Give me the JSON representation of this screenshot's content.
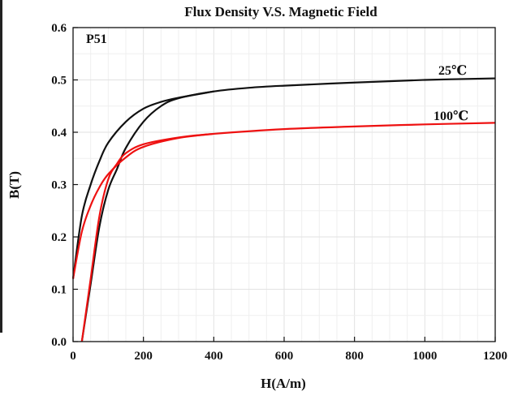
{
  "chart_data": {
    "type": "line",
    "title": "Flux Density V.S. Magnetic Field",
    "sample_label": "P51",
    "xlabel": "H(A/m)",
    "ylabel": "B(T)",
    "xlim": [
      0,
      1200
    ],
    "ylim": [
      0.0,
      0.6
    ],
    "x_ticks": [
      "0",
      "200",
      "400",
      "600",
      "800",
      "1000",
      "1200"
    ],
    "y_ticks": [
      "0.0",
      "0.1",
      "0.2",
      "0.3",
      "0.4",
      "0.5",
      "0.6"
    ],
    "grid": true,
    "series": [
      {
        "name": "25℃",
        "color": "#111111",
        "lower_branch": [
          [
            25,
            0.0
          ],
          [
            50,
            0.11
          ],
          [
            75,
            0.22
          ],
          [
            100,
            0.29
          ],
          [
            125,
            0.33
          ],
          [
            150,
            0.37
          ],
          [
            200,
            0.42
          ],
          [
            250,
            0.45
          ],
          [
            300,
            0.465
          ],
          [
            400,
            0.478
          ],
          [
            500,
            0.485
          ],
          [
            600,
            0.489
          ],
          [
            800,
            0.495
          ],
          [
            1000,
            0.5
          ],
          [
            1200,
            0.503
          ]
        ],
        "upper_branch": [
          [
            0,
            0.12
          ],
          [
            25,
            0.24
          ],
          [
            50,
            0.3
          ],
          [
            75,
            0.345
          ],
          [
            100,
            0.38
          ],
          [
            150,
            0.42
          ],
          [
            200,
            0.445
          ],
          [
            250,
            0.458
          ],
          [
            300,
            0.466
          ],
          [
            400,
            0.478
          ]
        ]
      },
      {
        "name": "100℃",
        "color": "#ee1111",
        "lower_branch": [
          [
            25,
            0.0
          ],
          [
            50,
            0.12
          ],
          [
            75,
            0.24
          ],
          [
            100,
            0.31
          ],
          [
            125,
            0.34
          ],
          [
            150,
            0.36
          ],
          [
            200,
            0.377
          ],
          [
            300,
            0.39
          ],
          [
            400,
            0.397
          ],
          [
            600,
            0.406
          ],
          [
            800,
            0.411
          ],
          [
            1000,
            0.415
          ],
          [
            1200,
            0.418
          ]
        ],
        "upper_branch": [
          [
            0,
            0.12
          ],
          [
            25,
            0.21
          ],
          [
            50,
            0.26
          ],
          [
            75,
            0.295
          ],
          [
            100,
            0.32
          ],
          [
            150,
            0.352
          ],
          [
            200,
            0.372
          ],
          [
            300,
            0.389
          ],
          [
            400,
            0.397
          ]
        ]
      }
    ]
  }
}
